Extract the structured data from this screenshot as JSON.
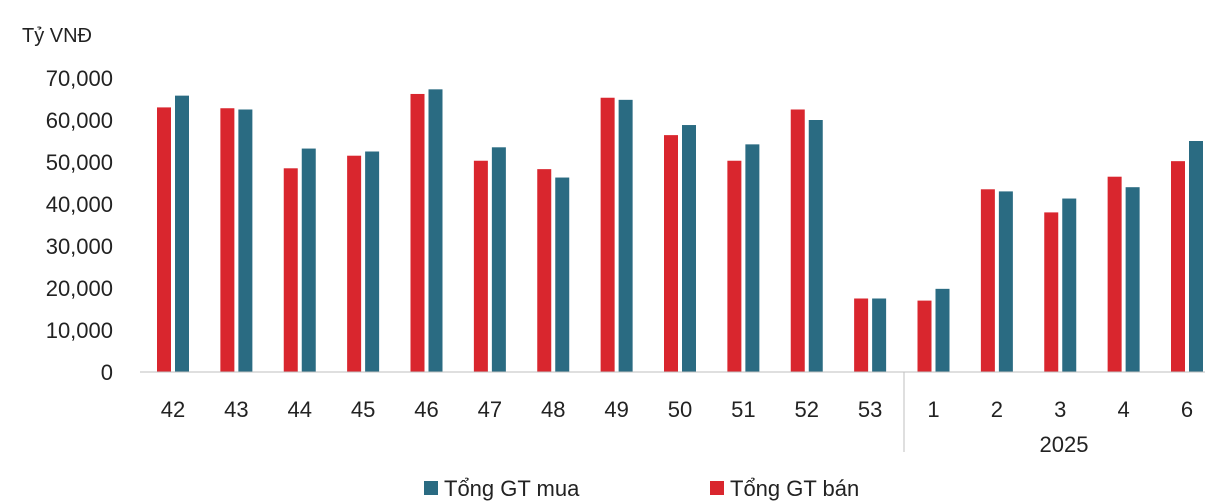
{
  "chart_data": {
    "type": "bar",
    "ylabel": "Tỷ VNĐ",
    "ylim": [
      0,
      70000
    ],
    "yticks": [
      "0",
      "10,000",
      "20,000",
      "30,000",
      "40,000",
      "50,000",
      "60,000",
      "70,000"
    ],
    "categories": [
      "42",
      "43",
      "44",
      "45",
      "46",
      "47",
      "48",
      "49",
      "50",
      "51",
      "52",
      "53",
      "1",
      "2",
      "3",
      "4",
      "6"
    ],
    "group_label": "2025",
    "series": [
      {
        "name": "Tổng GT bán",
        "color": "#d9262e",
        "values": [
          63000,
          62800,
          48500,
          51500,
          66200,
          50300,
          48300,
          65300,
          56400,
          50300,
          62500,
          17500,
          17000,
          43500,
          38000,
          46500,
          50200
        ]
      },
      {
        "name": "Tổng GT mua",
        "color": "#2a6b82",
        "values": [
          65800,
          62500,
          53200,
          52500,
          67300,
          53500,
          46300,
          64800,
          58800,
          54200,
          60000,
          17500,
          19800,
          43000,
          41300,
          44000,
          55000
        ]
      }
    ],
    "legend_order": [
      "Tổng GT mua",
      "Tổng GT bán"
    ],
    "legend": "bottom",
    "grid": false
  }
}
